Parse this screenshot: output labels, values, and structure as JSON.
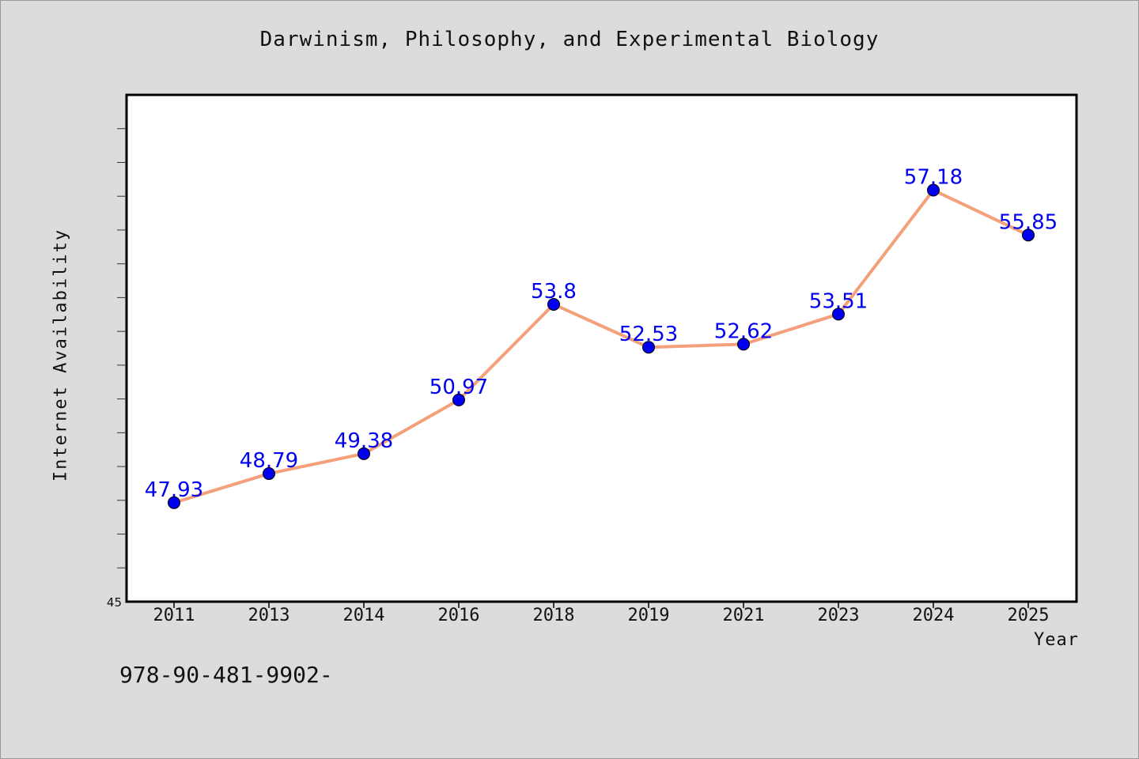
{
  "footer_code": "978-90-481-9902-",
  "chart_data": {
    "type": "line",
    "title": "Darwinism, Philosophy, and Experimental Biology",
    "xlabel": "Year",
    "ylabel": "Internet Availability",
    "categories": [
      "2011",
      "2013",
      "2014",
      "2016",
      "2018",
      "2019",
      "2021",
      "2023",
      "2024",
      "2025"
    ],
    "series": [
      {
        "values": [
          47.93,
          48.79,
          49.38,
          50.97,
          53.8,
          52.53,
          52.62,
          53.51,
          57.18,
          55.85
        ],
        "data_labels": [
          "47.93",
          "48.79",
          "49.38",
          "50.97",
          "53.8",
          "52.53",
          "52.62",
          "53.51",
          "57.18",
          "55.85"
        ],
        "line_color": "#f4a07a",
        "marker_color": "#0000ee",
        "label_color": "#0000ee"
      }
    ],
    "ylim": [
      45,
      60
    ],
    "y_tick_labels": [
      "45"
    ],
    "grid": false,
    "legend": "none",
    "plot_background": "#ffffff",
    "page_background": "#dcdcdc"
  }
}
